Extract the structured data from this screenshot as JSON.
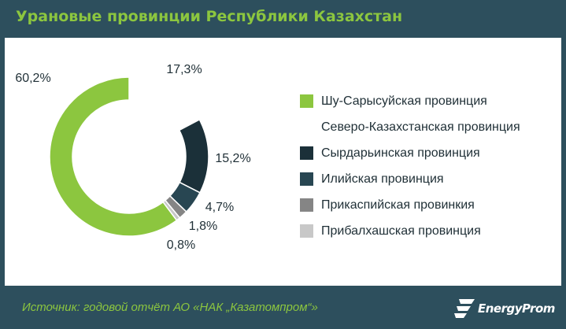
{
  "title": "Урановые провинции Республики Казахстан",
  "source": "Источник: годовой отчёт АО «НАК „Казатомпром“»",
  "brand": "EnergyProm",
  "colors": {
    "background": "#2d4f5d",
    "accent": "#8cc63f",
    "panel": "#ffffff"
  },
  "chart_data": {
    "type": "pie",
    "variant": "donut",
    "title": "Урановые провинции Республики Казахстан",
    "legend_position": "right",
    "slices": [
      {
        "name": "Шу-Сарысуйская провинция",
        "value": 60.2,
        "label": "60,2%",
        "color": "#8cc63f"
      },
      {
        "name": "Северо-Казахстанская провинция",
        "value": 17.3,
        "label": "17,3%",
        "color": "#ffffff"
      },
      {
        "name": "Сырдарьинская провинция",
        "value": 15.2,
        "label": "15,2%",
        "color": "#1b3039"
      },
      {
        "name": "Илийская провинция",
        "value": 4.7,
        "label": "4,7%",
        "color": "#284652"
      },
      {
        "name": "Прикаспийская провинкия",
        "value": 1.8,
        "label": "1,8%",
        "color": "#858585"
      },
      {
        "name": "Прибалхашская провинция",
        "value": 0.8,
        "label": "0,8%",
        "color": "#c8c8c8"
      }
    ]
  }
}
